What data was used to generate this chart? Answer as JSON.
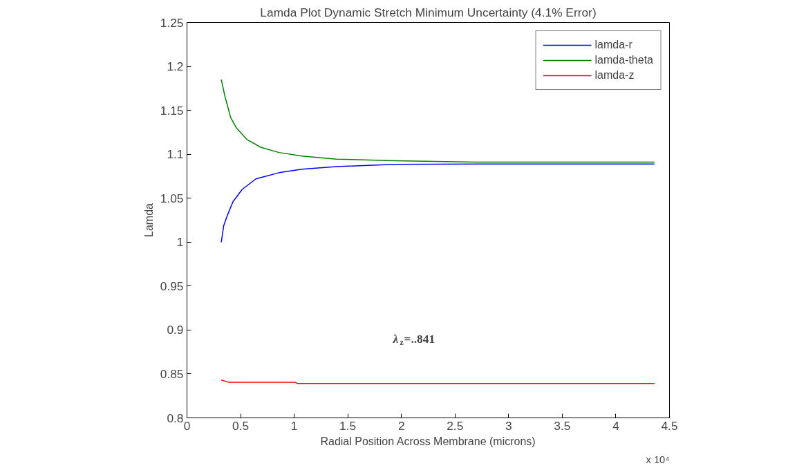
{
  "chart_data": {
    "type": "line",
    "title": "Lamda Plot Dynamic Stretch Minimum Uncertainty (4.1% Error)",
    "xlabel": "Radial Position Across Membrane (microns)",
    "ylabel": "Lamda",
    "annotations": [
      "λ$_{z}$=..841",
      "x 10⁴"
    ],
    "xlim": [
      0,
      4.5
    ],
    "xticks": [
      0,
      0.5,
      1,
      1.5,
      2,
      2.5,
      3,
      3.5,
      4,
      4.5
    ],
    "ylim": [
      0.8,
      1.25
    ],
    "yticks": [
      0.8,
      0.85,
      0.9,
      0.95,
      1,
      1.05,
      1.1,
      1.15,
      1.2,
      1.25
    ],
    "grid": false,
    "legend": "top right",
    "marker": "none",
    "line_style": "solid",
    "series": [
      {
        "name": "lamda-r",
        "color": "#0000ff",
        "x": [
          0.32,
          0.343,
          0.375,
          0.429,
          0.515,
          0.643,
          0.858,
          1.073,
          1.394,
          1.93,
          2.7,
          3.5,
          4.36
        ],
        "values": [
          1.0,
          1.019,
          1.03,
          1.046,
          1.06,
          1.072,
          1.079,
          1.083,
          1.086,
          1.0885,
          1.089,
          1.089,
          1.089
        ]
      },
      {
        "name": "lamda-theta",
        "color": "#008000",
        "x": [
          0.32,
          0.354,
          0.407,
          0.461,
          0.558,
          0.687,
          0.858,
          1.073,
          1.394,
          1.93,
          2.7,
          3.5,
          4.36
        ],
        "values": [
          1.185,
          1.166,
          1.142,
          1.13,
          1.117,
          1.108,
          1.102,
          1.098,
          1.0945,
          1.0926,
          1.091,
          1.091,
          1.091
        ]
      },
      {
        "name": "lamda-z",
        "color": "#ff0000",
        "x": [
          0.32,
          0.386,
          1.008,
          1.03,
          2.5,
          4.36
        ],
        "values": [
          0.843,
          0.8406,
          0.8406,
          0.8392,
          0.8392,
          0.8392
        ]
      }
    ]
  }
}
